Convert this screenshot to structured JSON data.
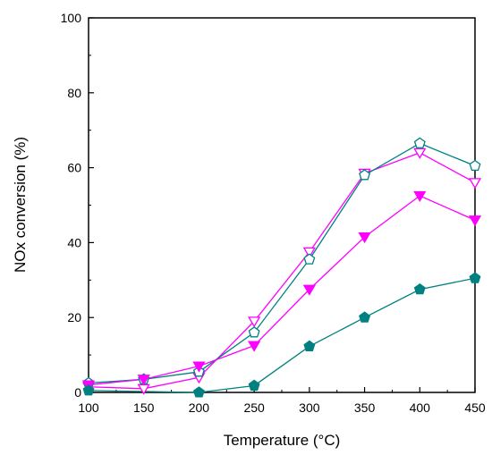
{
  "chart_data": {
    "type": "line",
    "xlabel": "Temperature (°C)",
    "ylabel": "NOx conversion (%)",
    "xlim": [
      100,
      450
    ],
    "ylim": [
      0,
      100
    ],
    "xticks": [
      100,
      150,
      200,
      250,
      300,
      350,
      400,
      450
    ],
    "yticks": [
      0,
      20,
      40,
      60,
      80,
      100
    ],
    "grid": false,
    "x": [
      100,
      150,
      200,
      250,
      300,
      350,
      400,
      450
    ],
    "series": [
      {
        "marker": "triangle-down-open",
        "color": "#ff00ff",
        "values": [
          1.5,
          1.0,
          4.0,
          19.0,
          37.5,
          58.5,
          64.0,
          56.0
        ]
      },
      {
        "marker": "pentagon-open",
        "color": "#008080",
        "values": [
          2.5,
          3.5,
          5.5,
          16.0,
          35.5,
          58.0,
          66.5,
          60.5
        ]
      },
      {
        "marker": "triangle-down-filled",
        "color": "#ff00ff",
        "values": [
          2.0,
          3.5,
          7.0,
          12.5,
          27.5,
          41.5,
          52.5,
          46.0
        ]
      },
      {
        "marker": "pentagon-filled",
        "color": "#008080",
        "values": [
          0.5,
          null,
          0.0,
          1.8,
          12.3,
          20.0,
          27.5,
          30.5
        ]
      }
    ]
  }
}
